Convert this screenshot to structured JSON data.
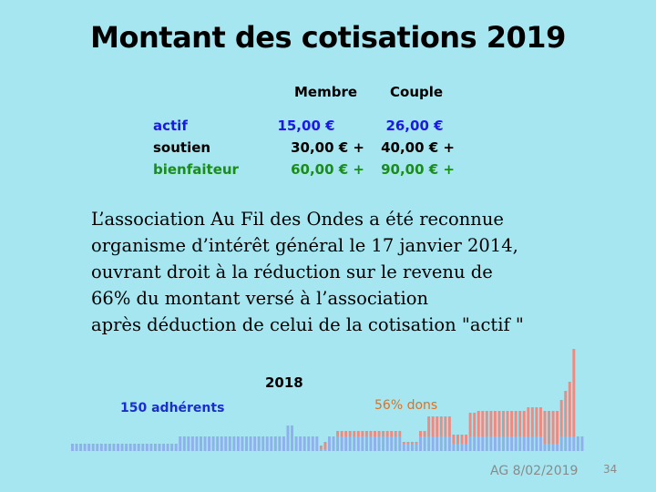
{
  "title": "Montant des cotisations 2019",
  "fees": {
    "col_member": "Membre",
    "col_couple": "Couple",
    "rows": [
      {
        "label": "actif",
        "member": "15,00 €",
        "couple": "26,00 €",
        "color": "#1a1ae6"
      },
      {
        "label": "soutien",
        "member": "30,00 € +",
        "couple": "40,00 € +",
        "color": "#000000"
      },
      {
        "label": "bienfaiteur",
        "member": "60,00 € +",
        "couple": "90,00 € +",
        "color": "#1a8c1a"
      }
    ]
  },
  "paragraph": [
    "L’association Au Fil des Ondes a été reconnue",
    "organisme d’intérêt général le 17 janvier 2014,",
    "ouvrant droit à la réduction sur le revenu de",
    "66% du montant versé à l’association",
    "après déduction de celui de la cotisation \"actif \""
  ],
  "chart_data": {
    "type": "bar",
    "year_label": "2018",
    "members_label": "150 adhérents",
    "donations_label": "56% dons",
    "series": [
      {
        "values": [
          8,
          8,
          8,
          8,
          8,
          8,
          8,
          8,
          8,
          8,
          8,
          8,
          8,
          8,
          8,
          8,
          8,
          8,
          8,
          8,
          8,
          8,
          8,
          8,
          8,
          8,
          16,
          16,
          16,
          16,
          16,
          16,
          16,
          16,
          16,
          16,
          16,
          16,
          16,
          16,
          16,
          16,
          16,
          16,
          16,
          16,
          16,
          16,
          16,
          16,
          16,
          16,
          28,
          28,
          16,
          16,
          16,
          16,
          16,
          16,
          2,
          2,
          16,
          16,
          16,
          16,
          16,
          16,
          16,
          16,
          16,
          16,
          16,
          16,
          16,
          16,
          16,
          16,
          16,
          16,
          8,
          8,
          8,
          8,
          16,
          16,
          16,
          16,
          16,
          16,
          16,
          16,
          8,
          8,
          8,
          8,
          16,
          16,
          16,
          16,
          16,
          16,
          16,
          16,
          16,
          16,
          16,
          16,
          16,
          16,
          16,
          16,
          16,
          16,
          8,
          8,
          8,
          8,
          16,
          16,
          16,
          16,
          16,
          16
        ],
        "color": "#8fb0ec"
      },
      {
        "values": [
          0,
          0,
          0,
          0,
          0,
          0,
          0,
          0,
          0,
          0,
          0,
          0,
          0,
          0,
          0,
          0,
          0,
          0,
          0,
          0,
          0,
          0,
          0,
          0,
          0,
          0,
          0,
          0,
          0,
          0,
          0,
          0,
          0,
          0,
          0,
          0,
          0,
          0,
          0,
          0,
          0,
          0,
          0,
          0,
          0,
          0,
          0,
          0,
          0,
          0,
          0,
          0,
          0,
          0,
          0,
          0,
          0,
          0,
          0,
          0,
          4,
          8,
          0,
          0,
          6,
          6,
          6,
          6,
          6,
          6,
          6,
          6,
          6,
          6,
          6,
          6,
          6,
          6,
          6,
          6,
          2,
          2,
          2,
          2,
          6,
          6,
          22,
          22,
          22,
          22,
          22,
          22,
          10,
          10,
          10,
          10,
          26,
          26,
          28,
          28,
          28,
          28,
          28,
          28,
          28,
          28,
          28,
          28,
          28,
          28,
          32,
          32,
          32,
          32,
          36,
          36,
          36,
          36,
          40,
          50,
          60,
          96
        ],
        "color": "#ee8a80"
      }
    ]
  },
  "footer": "AG 8/02/2019",
  "page_number": "34"
}
